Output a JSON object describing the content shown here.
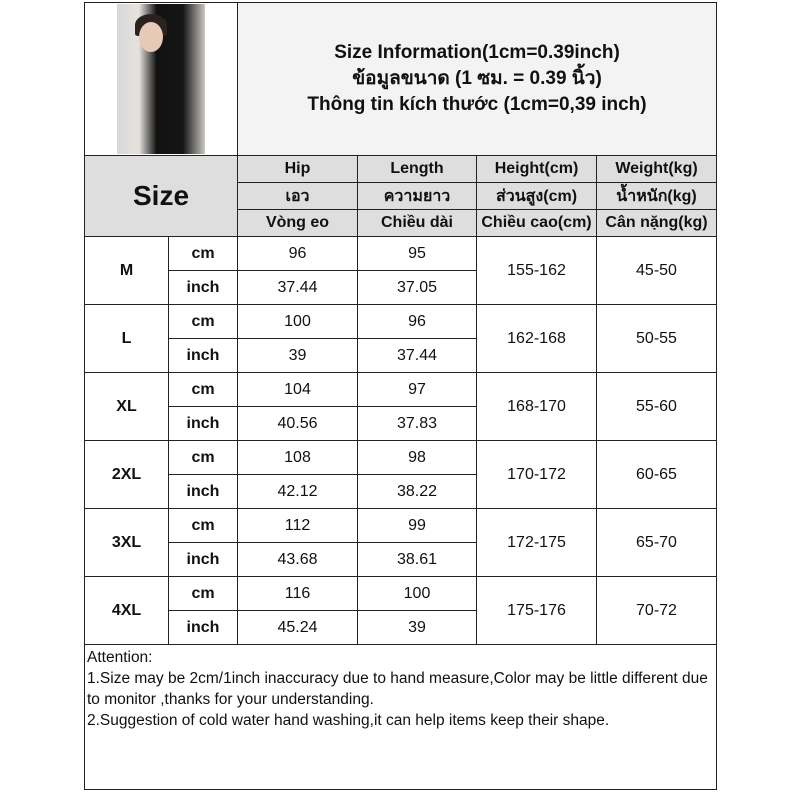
{
  "title_lines": [
    "Size Information(1cm=0.39inch)",
    "ข้อมูลขนาด (1 ซม. = 0.39 นิ้ว)",
    "Thông tin kích thước (1cm=0,39 inch)"
  ],
  "size_label": "Size",
  "headers": [
    [
      "Hip",
      "Length",
      "Height(cm)",
      "Weight(kg)"
    ],
    [
      "เอว",
      "ความยาว",
      "ส่วนสูง(cm)",
      "น้ำหนัก(kg)"
    ],
    [
      "Vòng eo",
      "Chiều dài",
      "Chiều cao(cm)",
      "Cân nặng(kg)"
    ]
  ],
  "units": [
    "cm",
    "inch"
  ],
  "rows": [
    {
      "size": "M",
      "hip_cm": "96",
      "len_cm": "95",
      "hip_in": "37.44",
      "len_in": "37.05",
      "height": "155-162",
      "weight": "45-50"
    },
    {
      "size": "L",
      "hip_cm": "100",
      "len_cm": "96",
      "hip_in": "39",
      "len_in": "37.44",
      "height": "162-168",
      "weight": "50-55"
    },
    {
      "size": "XL",
      "hip_cm": "104",
      "len_cm": "97",
      "hip_in": "40.56",
      "len_in": "37.83",
      "height": "168-170",
      "weight": "55-60"
    },
    {
      "size": "2XL",
      "hip_cm": "108",
      "len_cm": "98",
      "hip_in": "42.12",
      "len_in": "38.22",
      "height": "170-172",
      "weight": "60-65"
    },
    {
      "size": "3XL",
      "hip_cm": "112",
      "len_cm": "99",
      "hip_in": "43.68",
      "len_in": "38.61",
      "height": "172-175",
      "weight": "65-70"
    },
    {
      "size": "4XL",
      "hip_cm": "116",
      "len_cm": "100",
      "hip_in": "45.24",
      "len_in": "39",
      "height": "175-176",
      "weight": "70-72"
    }
  ],
  "attention": [
    "Attention:",
    "1.Size may be 2cm/1inch inaccuracy due to hand measure,Color may be little different due to monitor ,thanks for your understanding.",
    "2.Suggestion of cold water hand washing,it can help items keep their shape."
  ]
}
